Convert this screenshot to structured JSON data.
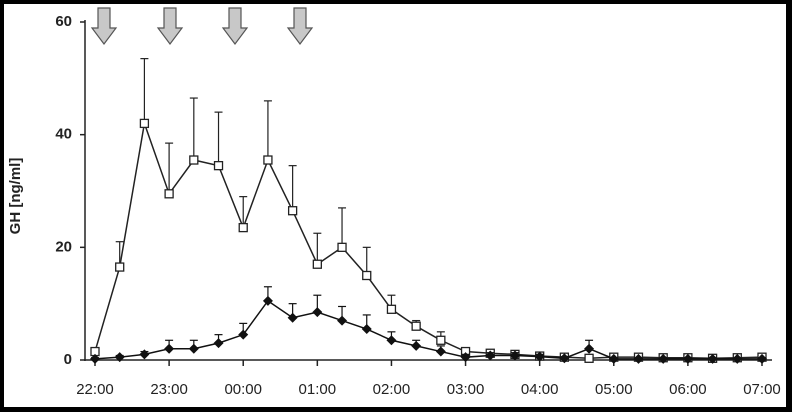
{
  "chart_data": {
    "type": "line",
    "y_label": "GH [ng/ml]",
    "categories": [
      "22:00",
      null,
      null,
      "23:00",
      null,
      null,
      "00:00",
      null,
      null,
      "01:00",
      null,
      null,
      "02:00",
      null,
      null,
      "03:00",
      null,
      null,
      "04:00",
      null,
      null,
      "05:00",
      null,
      null,
      "06:00",
      null,
      null,
      "07:00"
    ],
    "ylim": [
      0,
      60
    ],
    "yticks": [
      0,
      20,
      40,
      60
    ],
    "series": [
      {
        "marker": "square",
        "color": "#222222",
        "values": [
          1.5,
          16.5,
          42,
          29.5,
          35.5,
          34.5,
          23.5,
          35.5,
          26.5,
          17,
          20,
          15,
          9,
          6,
          3.5,
          1.5,
          1.2,
          1,
          0.7,
          0.5,
          0.3,
          0.5,
          0.5,
          0.4,
          0.4,
          0.3,
          0.4,
          0.5
        ],
        "errors": [
          0.3,
          4.5,
          11.5,
          9,
          11,
          9.5,
          5.5,
          10.5,
          8,
          5.5,
          7,
          5,
          2.5,
          1,
          1.5,
          0.5,
          0.4,
          0.4,
          0.3,
          0.3,
          0.2,
          0.2,
          0.2,
          0.2,
          0.2,
          0.2,
          0.2,
          0.2
        ]
      },
      {
        "marker": "diamond",
        "color": "#111111",
        "values": [
          0.2,
          0.5,
          1,
          2,
          2,
          3,
          4.5,
          10.5,
          7.5,
          8.5,
          7,
          5.5,
          3.5,
          2.5,
          1.5,
          0.5,
          0.8,
          0.8,
          0.6,
          0.3,
          2,
          0.2,
          0.2,
          0.2,
          0.2,
          0.2,
          0.2,
          0.2
        ],
        "errors": [
          0.2,
          0.3,
          0.5,
          1.5,
          1.5,
          1.5,
          2,
          2.5,
          2.5,
          3,
          2.5,
          2.5,
          1.5,
          1,
          1,
          0.5,
          0.5,
          0.5,
          0.4,
          0.3,
          1.5,
          0.2,
          0.2,
          0.2,
          0.2,
          0.2,
          0.2,
          0.2
        ]
      }
    ]
  }
}
